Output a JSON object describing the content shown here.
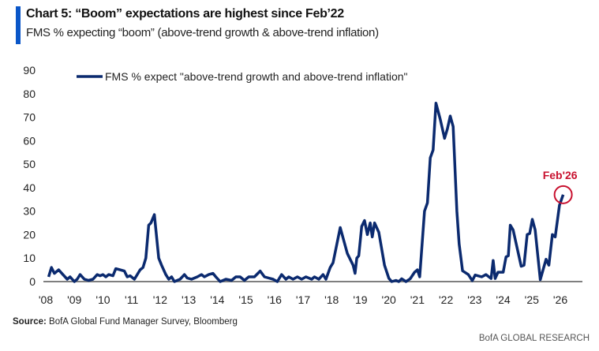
{
  "header": {
    "title": "Chart 5: “Boom” expectations are highest since Feb’22",
    "subtitle": "FMS % expecting “boom” (above-trend growth & above-trend inflation)"
  },
  "footer": {
    "source_label": "Source:",
    "source_text": " BofA Global Fund Manager Survey, Bloomberg",
    "brand": "BofA GLOBAL RESEARCH"
  },
  "colors": {
    "accent_bar": "#0a56c8",
    "series": "#0b2a6f",
    "annotation": "#c8102e",
    "axis": "#7f7f7f"
  },
  "chart_data": {
    "type": "line",
    "title": "Chart 5: “Boom” expectations are highest since Feb’22",
    "subtitle": "FMS % expecting “boom” (above-trend growth & above-trend inflation)",
    "xlabel": "",
    "ylabel": "",
    "ylim": [
      0,
      90
    ],
    "yticks": [
      "0",
      "10",
      "20",
      "30",
      "40",
      "50",
      "60",
      "70",
      "80",
      "90"
    ],
    "xticks": [
      "'08",
      "'09",
      "'10",
      "'11",
      "'12",
      "'13",
      "'14",
      "'15",
      "'16",
      "'17",
      "'18",
      "'19",
      "'20",
      "'21",
      "'22",
      "'23",
      "'24",
      "'25",
      "'26"
    ],
    "xtick_years": [
      2008,
      2009,
      2010,
      2011,
      2012,
      2013,
      2014,
      2015,
      2016,
      2017,
      2018,
      2019,
      2020,
      2021,
      2022,
      2023,
      2024,
      2025,
      2026
    ],
    "grid": false,
    "legend_position": "top-left",
    "annotation": {
      "label": "Feb'26",
      "x": 2026.1,
      "y": 38
    },
    "series": [
      {
        "name": "FMS % expect \"above-trend growth and above-trend inflation\"",
        "points": [
          [
            2008.1,
            2
          ],
          [
            2008.2,
            6
          ],
          [
            2008.3,
            3.5
          ],
          [
            2008.45,
            5
          ],
          [
            2008.6,
            3
          ],
          [
            2008.75,
            1
          ],
          [
            2008.85,
            2
          ],
          [
            2009.0,
            0
          ],
          [
            2009.1,
            1
          ],
          [
            2009.2,
            3
          ],
          [
            2009.35,
            1
          ],
          [
            2009.5,
            0.5
          ],
          [
            2009.65,
            1
          ],
          [
            2009.8,
            3
          ],
          [
            2009.9,
            2.5
          ],
          [
            2010.0,
            3
          ],
          [
            2010.1,
            2
          ],
          [
            2010.2,
            3
          ],
          [
            2010.35,
            2.5
          ],
          [
            2010.45,
            5.5
          ],
          [
            2010.6,
            5
          ],
          [
            2010.75,
            4.5
          ],
          [
            2010.85,
            2
          ],
          [
            2010.95,
            2.5
          ],
          [
            2011.1,
            1
          ],
          [
            2011.2,
            3
          ],
          [
            2011.3,
            5
          ],
          [
            2011.4,
            6
          ],
          [
            2011.5,
            10
          ],
          [
            2011.6,
            24
          ],
          [
            2011.68,
            25
          ],
          [
            2011.8,
            28.5
          ],
          [
            2011.95,
            10
          ],
          [
            2012.05,
            7
          ],
          [
            2012.2,
            3
          ],
          [
            2012.3,
            1
          ],
          [
            2012.4,
            2
          ],
          [
            2012.5,
            0
          ],
          [
            2012.7,
            1
          ],
          [
            2012.85,
            3
          ],
          [
            2012.95,
            1.5
          ],
          [
            2013.1,
            1
          ],
          [
            2013.3,
            2
          ],
          [
            2013.45,
            3
          ],
          [
            2013.55,
            2
          ],
          [
            2013.7,
            3
          ],
          [
            2013.85,
            3.5
          ],
          [
            2013.95,
            2
          ],
          [
            2014.1,
            0
          ],
          [
            2014.3,
            1
          ],
          [
            2014.5,
            0.5
          ],
          [
            2014.65,
            2
          ],
          [
            2014.8,
            2
          ],
          [
            2014.95,
            0.5
          ],
          [
            2015.1,
            2
          ],
          [
            2015.3,
            2
          ],
          [
            2015.5,
            4.5
          ],
          [
            2015.65,
            2
          ],
          [
            2015.8,
            1.5
          ],
          [
            2015.95,
            1
          ],
          [
            2016.1,
            0
          ],
          [
            2016.25,
            3
          ],
          [
            2016.4,
            1
          ],
          [
            2016.5,
            2
          ],
          [
            2016.65,
            1
          ],
          [
            2016.8,
            2
          ],
          [
            2016.95,
            1
          ],
          [
            2017.1,
            2
          ],
          [
            2017.3,
            1
          ],
          [
            2017.4,
            2
          ],
          [
            2017.55,
            1
          ],
          [
            2017.7,
            3
          ],
          [
            2017.8,
            1
          ],
          [
            2017.95,
            6
          ],
          [
            2018.05,
            8
          ],
          [
            2018.3,
            23
          ],
          [
            2018.55,
            12
          ],
          [
            2018.75,
            7
          ],
          [
            2018.82,
            3.5
          ],
          [
            2018.88,
            10
          ],
          [
            2018.95,
            11
          ],
          [
            2019.05,
            23.5
          ],
          [
            2019.15,
            26
          ],
          [
            2019.25,
            20
          ],
          [
            2019.35,
            25
          ],
          [
            2019.42,
            19
          ],
          [
            2019.5,
            25
          ],
          [
            2019.65,
            21
          ],
          [
            2019.85,
            7
          ],
          [
            2020.0,
            1.4
          ],
          [
            2020.1,
            0
          ],
          [
            2020.25,
            0.5
          ],
          [
            2020.35,
            0
          ],
          [
            2020.45,
            1.2
          ],
          [
            2020.6,
            0
          ],
          [
            2020.75,
            1.2
          ],
          [
            2020.9,
            4
          ],
          [
            2021.0,
            5
          ],
          [
            2021.08,
            2
          ],
          [
            2021.25,
            30
          ],
          [
            2021.35,
            33.5
          ],
          [
            2021.45,
            52.7
          ],
          [
            2021.55,
            56
          ],
          [
            2021.65,
            76
          ],
          [
            2021.8,
            69
          ],
          [
            2021.95,
            61
          ],
          [
            2022.05,
            65
          ],
          [
            2022.15,
            70.5
          ],
          [
            2022.25,
            66
          ],
          [
            2022.38,
            30
          ],
          [
            2022.46,
            16
          ],
          [
            2022.58,
            4.6
          ],
          [
            2022.78,
            3
          ],
          [
            2022.92,
            0.4
          ],
          [
            2023.02,
            2.8
          ],
          [
            2023.25,
            2
          ],
          [
            2023.4,
            3
          ],
          [
            2023.58,
            1.3
          ],
          [
            2023.65,
            9
          ],
          [
            2023.72,
            1.3
          ],
          [
            2023.82,
            4
          ],
          [
            2024.0,
            4
          ],
          [
            2024.1,
            10.5
          ],
          [
            2024.18,
            11
          ],
          [
            2024.25,
            24
          ],
          [
            2024.35,
            22
          ],
          [
            2024.63,
            6.5
          ],
          [
            2024.73,
            7
          ],
          [
            2024.84,
            20
          ],
          [
            2024.93,
            20.5
          ],
          [
            2025.02,
            26.5
          ],
          [
            2025.12,
            22
          ],
          [
            2025.3,
            0.8
          ],
          [
            2025.5,
            9.5
          ],
          [
            2025.6,
            7
          ],
          [
            2025.72,
            20
          ],
          [
            2025.82,
            19
          ],
          [
            2025.97,
            32.5
          ],
          [
            2026.1,
            37
          ]
        ]
      }
    ]
  }
}
